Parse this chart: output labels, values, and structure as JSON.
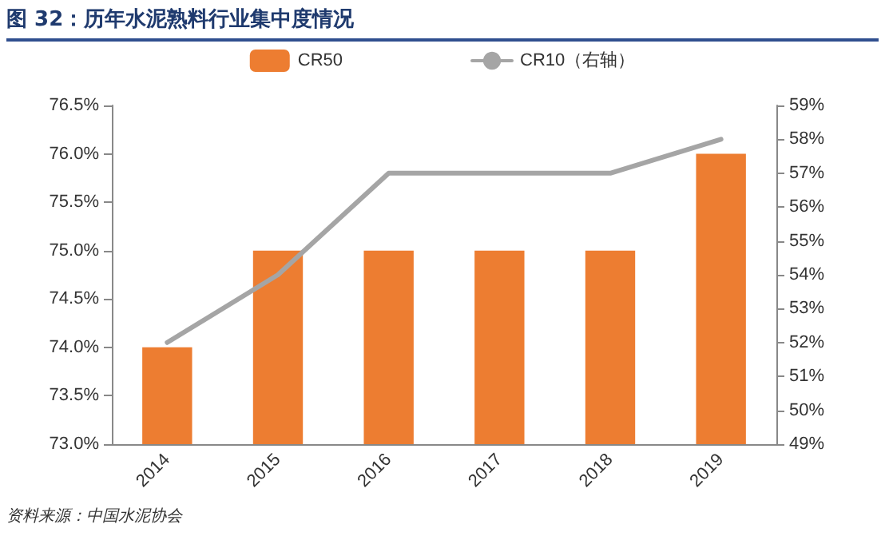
{
  "chart_data": {
    "type": "bar",
    "title": "图 32：历年水泥熟料行业集中度情况",
    "categories": [
      "2014",
      "2015",
      "2016",
      "2017",
      "2018",
      "2019"
    ],
    "series": [
      {
        "name": "CR50",
        "color": "#ed7d31",
        "values": [
          74.0,
          75.0,
          75.0,
          75.0,
          75.0,
          76.0
        ]
      },
      {
        "name": "CR10（右轴）",
        "type": "line",
        "axis": "y2",
        "color": "#a5a5a5",
        "values": [
          52,
          54,
          57,
          57,
          57,
          58
        ]
      }
    ],
    "ylim": [
      73,
      76.5
    ],
    "yticks": [
      {
        "value": 73,
        "label": "73.0%"
      },
      {
        "value": 73.5,
        "label": "73.5%"
      },
      {
        "value": 74,
        "label": "74.0%"
      },
      {
        "value": 74.5,
        "label": "74.5%"
      },
      {
        "value": 75,
        "label": "75.0%"
      },
      {
        "value": 75.5,
        "label": "75.5%"
      },
      {
        "value": 76,
        "label": "76.0%"
      },
      {
        "value": 76.5,
        "label": "76.5%"
      }
    ],
    "y2lim": [
      49,
      59
    ],
    "y2ticks": [
      {
        "value": 49,
        "label": "49%"
      },
      {
        "value": 50,
        "label": "50%"
      },
      {
        "value": 51,
        "label": "51%"
      },
      {
        "value": 52,
        "label": "52%"
      },
      {
        "value": 53,
        "label": "53%"
      },
      {
        "value": 54,
        "label": "54%"
      },
      {
        "value": 55,
        "label": "55%"
      },
      {
        "value": 56,
        "label": "56%"
      },
      {
        "value": 57,
        "label": "57%"
      },
      {
        "value": 58,
        "label": "58%"
      },
      {
        "value": 59,
        "label": "59%"
      }
    ],
    "grid": false,
    "legend": "top",
    "marker": "none",
    "line_style": "solid",
    "annotations": [
      "资料来源：中国水泥协会"
    ]
  }
}
